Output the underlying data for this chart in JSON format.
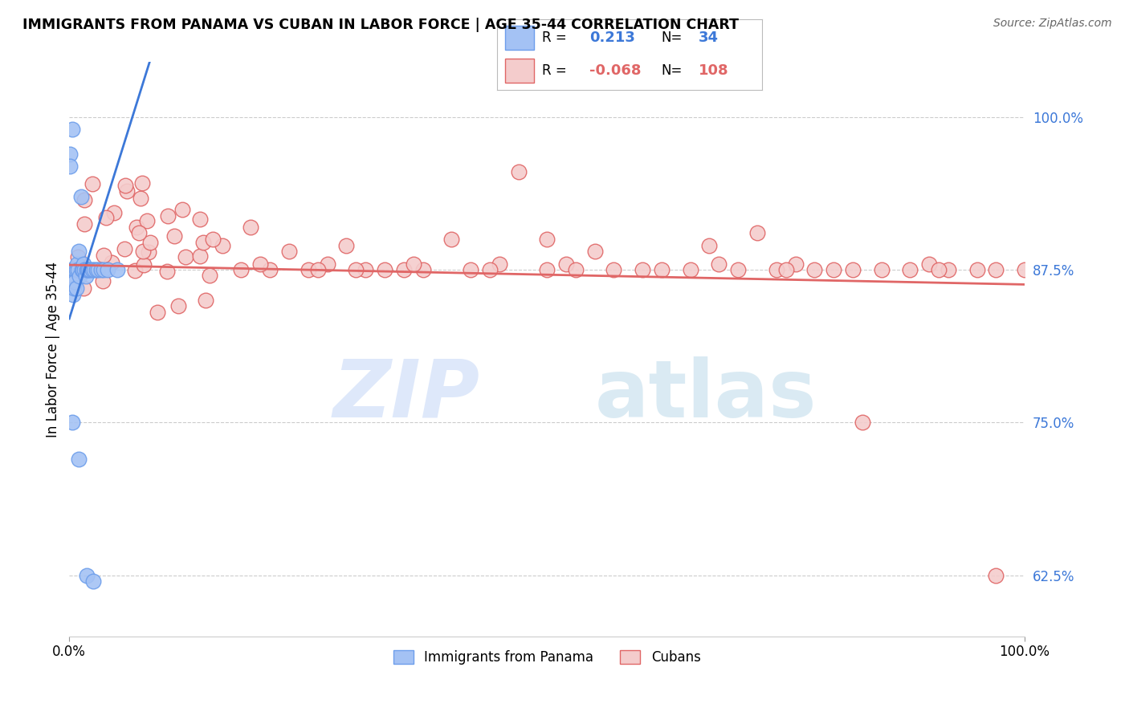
{
  "title": "IMMIGRANTS FROM PANAMA VS CUBAN IN LABOR FORCE | AGE 35-44 CORRELATION CHART",
  "source": "Source: ZipAtlas.com",
  "ylabel": "In Labor Force | Age 35-44",
  "xlim": [
    0.0,
    1.0
  ],
  "ylim": [
    0.575,
    1.045
  ],
  "yticks": [
    0.625,
    0.75,
    0.875,
    1.0
  ],
  "ytick_labels": [
    "62.5%",
    "75.0%",
    "87.5%",
    "100.0%"
  ],
  "legend_r_panama": "0.213",
  "legend_n_panama": "34",
  "legend_r_cuban": "-0.068",
  "legend_n_cuban": "108",
  "panama_fill": "#a4c2f4",
  "panama_edge": "#6d9eeb",
  "cuban_fill": "#f4cccc",
  "cuban_edge": "#e06666",
  "panama_line_color": "#3c78d8",
  "cuban_line_color": "#e06666",
  "grid_color": "#cccccc",
  "bg_color": "#ffffff",
  "watermark_zip_color": "#c9daf8",
  "watermark_atlas_color": "#b7d7e8"
}
